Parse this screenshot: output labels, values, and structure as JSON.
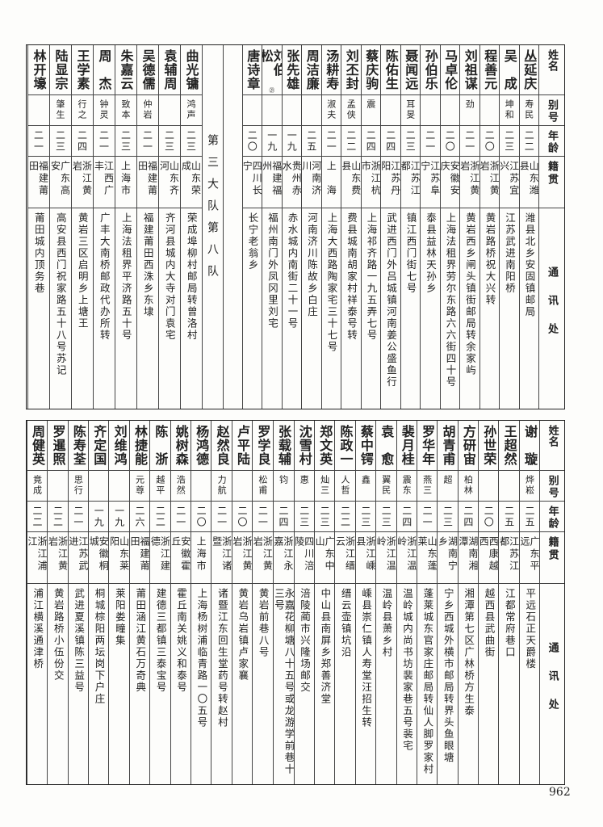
{
  "headers": {
    "name": "姓名",
    "alias": "别号",
    "age": "年龄",
    "native": "籍贯",
    "address": "通讯处"
  },
  "top_table": {
    "people_a": [
      {
        "name": "丛延庆",
        "alias": "寿民",
        "age": "二二",
        "native": "山东潍县",
        "address": "潍县北乡安固镇邮局"
      },
      {
        "name": "吴　成",
        "alias": "坤和",
        "age": "二三",
        "native": "江苏宜兴",
        "address": "江苏武进南阳桥"
      },
      {
        "name": "程善元",
        "alias": "",
        "age": "二〇",
        "native": "浙江黄岩",
        "address": "黄岩路桥祝大兴转"
      },
      {
        "name": "刘祖谋",
        "alias": "劲",
        "age": "二一",
        "native": "浙江黄岩",
        "address": "黄岩西乡闸头镇街邮局转余家屿"
      },
      {
        "name": "马卓伦",
        "alias": "",
        "age": "二〇",
        "native": "安徽安庆",
        "address": "上海法租界劳尔东路六六街四十号"
      },
      {
        "name": "孙伯乐",
        "alias": "",
        "age": "二一",
        "native": "江苏阜宁",
        "address": "泰县益林天孙乡"
      },
      {
        "name": "聂闻远",
        "alias": "耳旻",
        "age": "二三",
        "native": "江苏江都",
        "address": "镇江西门街七号"
      },
      {
        "name": "陈佑生",
        "alias": "",
        "age": "二四",
        "native": "江苏丹阳",
        "address": "武进西门外吕城镇河南姜公盛鱼行"
      },
      {
        "name": "蔡庆驹",
        "alias": "震",
        "age": "二四",
        "native": "浙江杭市",
        "address": "上海祁齐路一九五弄七号"
      },
      {
        "name": "刘丕封",
        "alias": "孟侠",
        "age": "二二",
        "native": "山东费县",
        "address": "费县城南胡家村祥泰号转"
      },
      {
        "name": "汤耕寿",
        "alias": "淑夫",
        "age": "二一",
        "native": "上　海",
        "address": "上海大西路陶家宅三十七号"
      },
      {
        "name": "周洁廉",
        "alias": "",
        "age": "二五",
        "native": "河南济川",
        "address": "河南济川陈故乡白庄"
      },
      {
        "name": "张先雄",
        "alias": "",
        "age": "一九",
        "native": "贵州赤水",
        "address": "赤水城内南街二十一号"
      },
      {
        "name": "刘伯松",
        "note": "㉑",
        "alias": "",
        "age": "一九",
        "native": "福建福州",
        "address": "福州南门外凤冈里刘宅"
      },
      {
        "name": "唐诗章",
        "alias": "",
        "age": "二〇",
        "native": "四川长宁",
        "address": "长宁老翁乡"
      }
    ],
    "section_label": "第三大队第八队",
    "people_b": [
      {
        "name": "曲光镛",
        "alias": "鸿声",
        "age": "二三",
        "native": "山东荣成",
        "address": "荣成埠柳村邮局转曾洛村"
      },
      {
        "name": "袁辅周",
        "alias": "",
        "age": "二三",
        "native": "山东齐河",
        "address": "齐河县城内大寺对门袁宅"
      },
      {
        "name": "吴德儒",
        "alias": "仲岩",
        "age": "二一",
        "native": "福建莆田",
        "address": "福建莆田西洙乡东埭"
      },
      {
        "name": "朱嘉云",
        "alias": "致本",
        "age": "二三",
        "native": "上海市",
        "address": "上海法租界平济路五十号"
      },
      {
        "name": "周　杰",
        "alias": "钟灵",
        "age": "二一",
        "native": "江西广丰",
        "address": "广丰大南桥邮政代办所转"
      },
      {
        "name": "王学素",
        "alias": "行之",
        "age": "二四",
        "native": "浙江黄岩",
        "address": "黄岩三区启明乡上塘王"
      },
      {
        "name": "陆显宗",
        "alias": "肇生",
        "age": "二三",
        "native": "广东高安",
        "address": "高安县西门祝家路五十八号苏记"
      },
      {
        "name": "林开壕",
        "alias": "",
        "age": "二一",
        "native": "福建莆田",
        "address": "莆田城内顶务巷"
      }
    ]
  },
  "bottom_table": {
    "people": [
      {
        "name": "谢　璇",
        "alias": "烨崧",
        "age": "二五",
        "native": "广东平远",
        "address": "平远石正天爵楼"
      },
      {
        "name": "王超然",
        "alias": "",
        "age": "二五",
        "native": "江苏江都",
        "address": "江都常府巷口"
      },
      {
        "name": "孙世荣",
        "alias": "",
        "age": "二〇",
        "native": "西康越西",
        "address": "越西县武曲街"
      },
      {
        "name": "方研宙",
        "alias": "柏林",
        "age": "二四",
        "native": "湖南湘潭",
        "address": "湘潭第七区广林桥方生泰"
      },
      {
        "name": "胡青甫",
        "alias": "超",
        "age": "二三",
        "native": "湖南宁乡",
        "address": "宁乡西城外横市邮局转界头鱼眼塘"
      },
      {
        "name": "罗华年",
        "alias": "燕三",
        "age": "二一",
        "native": "山东蓬莱",
        "address": "蓬莱城东官家庄邮局转仙人脚罗家村"
      },
      {
        "name": "裴月桂",
        "alias": "震东",
        "age": "二四",
        "native": "浙江温岭",
        "address": "温岭城内尚书坊裴家巷五号裴宅"
      },
      {
        "name": "袁　愈",
        "alias": "翼民",
        "age": "二三",
        "native": "浙江温岭",
        "address": "温岭县萧乡村"
      },
      {
        "name": "蔡中锷",
        "alias": "鑫",
        "age": "二三",
        "native": "浙江嵊县",
        "address": "嵊县崇仁镇人寿堂汪招生转"
      },
      {
        "name": "陈政一",
        "alias": "人哲",
        "age": "二二",
        "native": "浙江缙云",
        "address": "缙云壶镇坑沿"
      },
      {
        "name": "郑文英",
        "alias": "灿三",
        "age": "二三",
        "native": "广东中山",
        "address": "中山县南屏乡郑善济堂"
      },
      {
        "name": "沈雪村",
        "alias": "惠",
        "age": "二三",
        "native": "四川涪陵",
        "address": "涪陵蔺市兴隆场邮交"
      },
      {
        "name": "张载辅",
        "alias": "钧",
        "age": "二四",
        "native": "浙江永嘉",
        "address": "永嘉花柳塘八十五号或龙游学前巷十三号"
      },
      {
        "name": "罗学良",
        "alias": "松甫",
        "age": "二一",
        "native": "浙江黄岩",
        "address": "黄岩前巷八号"
      },
      {
        "name": "卢平陆",
        "alias": "",
        "age": "二〇",
        "native": "浙江黄岩",
        "address": "黄岩乌岩镇卢家襄"
      },
      {
        "name": "赵然良",
        "alias": "力航",
        "age": "二一",
        "native": "浙江诸暨",
        "address": "诸暨江东回生堂药号转赵村"
      },
      {
        "name": "杨鸿德",
        "alias": "",
        "age": "二〇",
        "native": "上海市",
        "address": "上海杨树浦临青路一〇五号"
      },
      {
        "name": "姚树森",
        "alias": "浩然",
        "age": "二一",
        "native": "安徽霍丘",
        "address": "霍丘南关姚义和泰号"
      },
      {
        "name": "陈　浙",
        "alias": "越平",
        "age": "二二",
        "native": "浙江建德",
        "address": "建德三都镇三泰宝号"
      },
      {
        "name": "林捷能",
        "alias": "元尊",
        "age": "二六",
        "native": "福建莆田",
        "address": "莆田涵江黄石万奇典"
      },
      {
        "name": "刘维鸿",
        "alias": "",
        "age": "一九",
        "native": "山东莱阳",
        "address": "莱阳娄疃集"
      },
      {
        "name": "齐定国",
        "alias": "",
        "age": "一九",
        "native": "安徽桐城",
        "address": "桐城棕阳两坛岗下户庄"
      },
      {
        "name": "陈寿荃",
        "alias": "思行",
        "age": "二一",
        "native": "江苏武进",
        "address": "武进夏溪镇陈三益号"
      },
      {
        "name": "罗暹照",
        "alias": "",
        "age": "二二",
        "native": "浙江黄岩",
        "address": "黄岩路桥小伍份交"
      },
      {
        "name": "周健英",
        "alias": "竟成",
        "age": "二二",
        "native": "浙江浦江",
        "address": "浦江横溪通津桥"
      }
    ]
  },
  "page_number": "962"
}
